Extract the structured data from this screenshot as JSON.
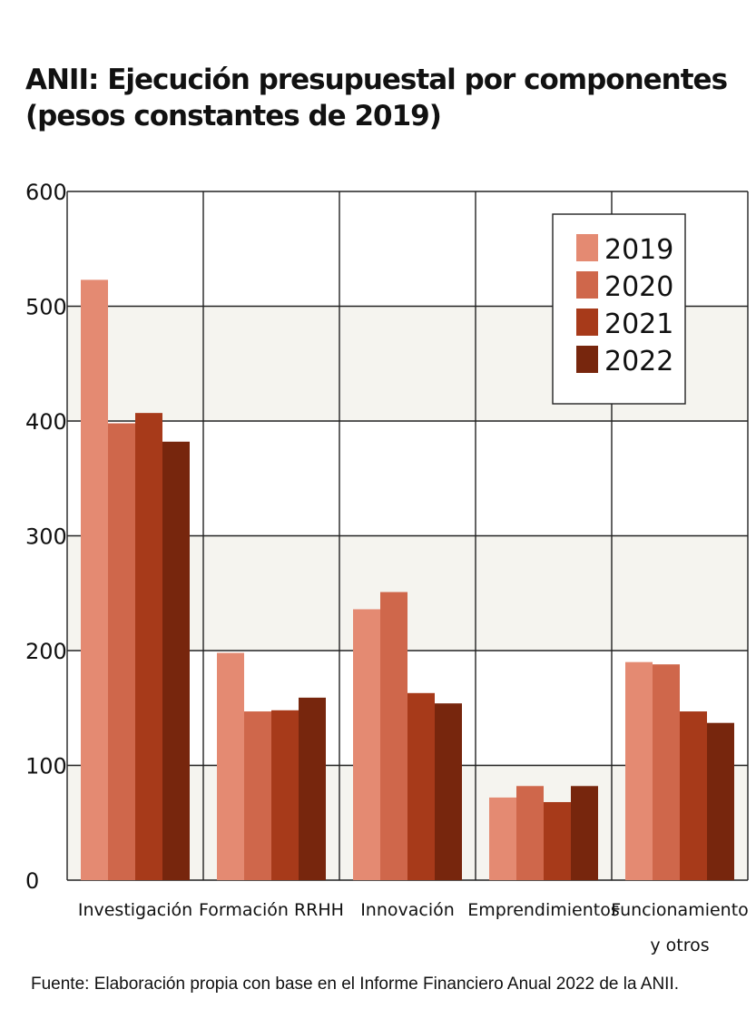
{
  "title_line1": "ANII: Ejecución presupuestal por componentes",
  "title_line2": "(pesos constantes de 2019)",
  "source": "Fuente: Elaboración propia con base en el Informe Financiero Anual 2022 de la ANII.",
  "colors": {
    "band": "#f5f4ef",
    "grid": "#222222",
    "series": [
      "#e48a72",
      "#cf674b",
      "#a73a1a",
      "#77260d"
    ]
  },
  "chart_data": {
    "type": "bar",
    "title": "ANII: Ejecución presupuestal por componentes (pesos constantes de 2019)",
    "categories": [
      [
        "Investigación"
      ],
      [
        "Formación RRHH"
      ],
      [
        "Innovación"
      ],
      [
        "Emprendimientos"
      ],
      [
        "Funcionamiento",
        "y otros"
      ]
    ],
    "series": [
      {
        "name": "2019",
        "values": [
          523,
          198,
          236,
          72,
          190
        ]
      },
      {
        "name": "2020",
        "values": [
          398,
          147,
          251,
          82,
          188
        ]
      },
      {
        "name": "2021",
        "values": [
          407,
          148,
          163,
          68,
          147
        ]
      },
      {
        "name": "2022",
        "values": [
          382,
          159,
          154,
          82,
          137
        ]
      }
    ],
    "yticks": [
      0,
      100,
      200,
      300,
      400,
      500,
      600
    ],
    "ylim": [
      0,
      600
    ],
    "xlabel": "",
    "ylabel": "",
    "grid": true,
    "legend": "top-right"
  }
}
